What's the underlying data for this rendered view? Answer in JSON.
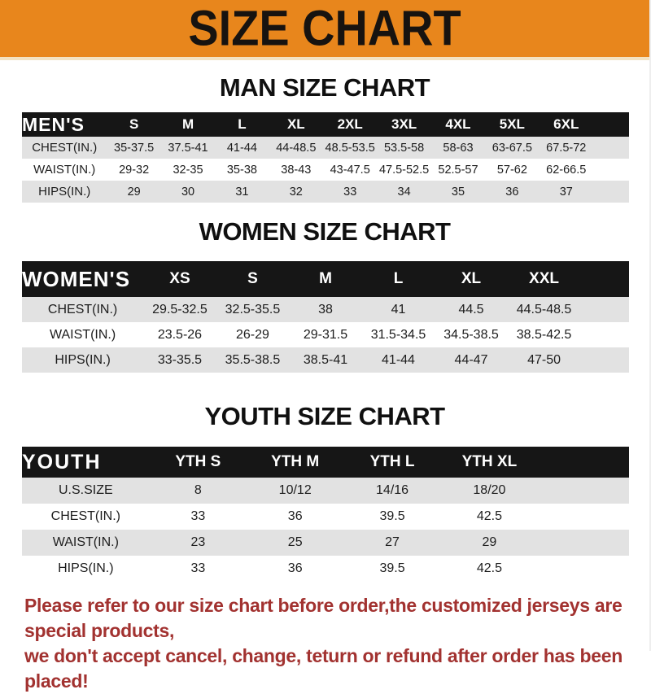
{
  "colors": {
    "banner-bg": "#E8861C",
    "banner-text": "#171310",
    "bar-bg": "#161616",
    "stripe": "#E2E2E2",
    "footer-text": "#A23230"
  },
  "banner": {
    "title": "SIZE CHART"
  },
  "man": {
    "heading": "MAN SIZE CHART",
    "table": {
      "header_label": "MEN'S",
      "columns": [
        "S",
        "M",
        "L",
        "XL",
        "2XL",
        "3XL",
        "4XL",
        "5XL",
        "6XL"
      ],
      "rows": [
        {
          "label": "CHEST(IN.)",
          "values": [
            "35-37.5",
            "37.5-41",
            "41-44",
            "44-48.5",
            "48.5-53.5",
            "53.5-58",
            "58-63",
            "63-67.5",
            "67.5-72"
          ]
        },
        {
          "label": "WAIST(IN.)",
          "values": [
            "29-32",
            "32-35",
            "35-38",
            "38-43",
            "43-47.5",
            "47.5-52.5",
            "52.5-57",
            "57-62",
            "62-66.5"
          ]
        },
        {
          "label": "HIPS(IN.)",
          "values": [
            "29",
            "30",
            "31",
            "32",
            "33",
            "34",
            "35",
            "36",
            "37"
          ]
        }
      ]
    }
  },
  "women": {
    "heading": "WOMEN SIZE CHART",
    "table": {
      "header_label": "WOMEN'S",
      "columns": [
        "XS",
        "S",
        "M",
        "L",
        "XL",
        "XXL"
      ],
      "rows": [
        {
          "label": "CHEST(IN.)",
          "values": [
            "29.5-32.5",
            "32.5-35.5",
            "38",
            "41",
            "44.5",
            "44.5-48.5"
          ]
        },
        {
          "label": "WAIST(IN.)",
          "values": [
            "23.5-26",
            "26-29",
            "29-31.5",
            "31.5-34.5",
            "34.5-38.5",
            "38.5-42.5"
          ]
        },
        {
          "label": "HIPS(IN.)",
          "values": [
            "33-35.5",
            "35.5-38.5",
            "38.5-41",
            "41-44",
            "44-47",
            "47-50"
          ]
        }
      ]
    }
  },
  "youth": {
    "heading": "YOUTH SIZE CHART",
    "table": {
      "header_label": "YOUTH",
      "columns": [
        "YTH S",
        "YTH M",
        "YTH L",
        "YTH XL"
      ],
      "rows": [
        {
          "label": "U.S.SIZE",
          "values": [
            "8",
            "10/12",
            "14/16",
            "18/20"
          ]
        },
        {
          "label": "CHEST(IN.)",
          "values": [
            "33",
            "36",
            "39.5",
            "42.5"
          ]
        },
        {
          "label": "WAIST(IN.)",
          "values": [
            "23",
            "25",
            "27",
            "29"
          ]
        },
        {
          "label": "HIPS(IN.)",
          "values": [
            "33",
            "36",
            "39.5",
            "42.5"
          ]
        }
      ]
    }
  },
  "footer": {
    "line1": "Please refer to our size chart before order,the customized jerseys are special products,",
    "line2": "we don't accept cancel, change, teturn or refund after order has been placed!"
  }
}
